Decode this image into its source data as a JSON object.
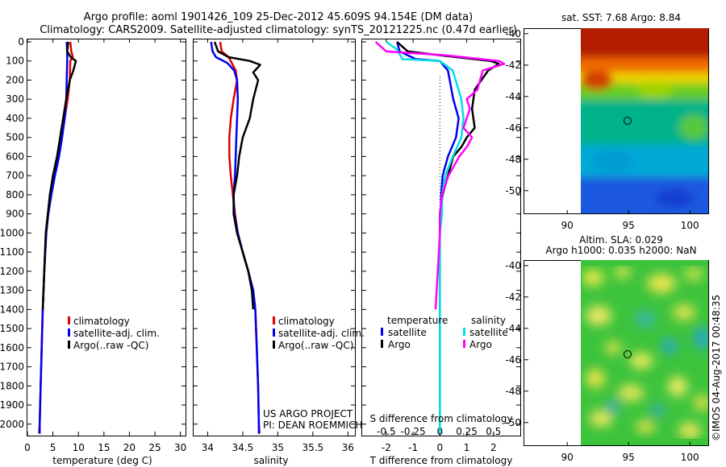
{
  "header": {
    "title_line1": "Argo profile: aoml 1901426_109 25-Dec-2012 45.609S 94.154E (DM data)",
    "title_line2": "Climatology: CARS2009. Satellite-adjusted climatology: synTS_20121225.nc (0.47d earlier)"
  },
  "colors": {
    "climatology": "#e00000",
    "satellite_clim": "#0000ee",
    "argo": "#000000",
    "temperature_satellite": "#0000ee",
    "salinity_satellite": "#00e0e0",
    "salinity_argo": "#ff00ff"
  },
  "credit": {
    "line1": "US ARGO PROJECT",
    "line2": "PI: DEAN ROEMMICH"
  },
  "timestamp": "©IMOS 04-Aug-2017 00:48:35",
  "chart_data": [
    {
      "id": "temperature",
      "type": "line",
      "xlabel": "temperature (deg C)",
      "xlim": [
        0,
        31
      ],
      "xticks": [
        0,
        5,
        10,
        15,
        20,
        25,
        30
      ],
      "ylim": [
        0,
        2060
      ],
      "yticks": [
        0,
        100,
        200,
        300,
        400,
        500,
        600,
        700,
        800,
        900,
        1000,
        1100,
        1200,
        1300,
        1400,
        1500,
        1600,
        1700,
        1800,
        1900,
        2000
      ],
      "legend": [
        "climatology",
        "satellite-adj. clim.",
        "Argo(..raw -QC)"
      ],
      "series": [
        {
          "name": "climatology",
          "color_key": "climatology",
          "points": [
            [
              8.4,
              0
            ],
            [
              8.6,
              50
            ],
            [
              8.9,
              80
            ],
            [
              8.4,
              100
            ],
            [
              8.3,
              200
            ],
            [
              7.9,
              300
            ],
            [
              7.3,
              400
            ],
            [
              6.6,
              500
            ],
            [
              5.9,
              600
            ],
            [
              5.1,
              700
            ],
            [
              4.5,
              800
            ],
            [
              4.0,
              900
            ],
            [
              3.6,
              1000
            ],
            [
              3.3,
              1200
            ],
            [
              3.0,
              1400
            ],
            [
              2.8,
              1600
            ],
            [
              2.6,
              1800
            ],
            [
              2.4,
              2000
            ],
            [
              2.3,
              2050
            ]
          ]
        },
        {
          "name": "satellite-adj. clim.",
          "color_key": "satellite_clim",
          "points": [
            [
              7.7,
              0
            ],
            [
              7.8,
              50
            ],
            [
              7.8,
              100
            ],
            [
              7.7,
              200
            ],
            [
              7.6,
              300
            ],
            [
              7.3,
              400
            ],
            [
              6.8,
              500
            ],
            [
              6.2,
              600
            ],
            [
              5.4,
              700
            ],
            [
              4.7,
              800
            ],
            [
              4.1,
              900
            ],
            [
              3.7,
              1000
            ],
            [
              3.3,
              1200
            ],
            [
              3.0,
              1400
            ],
            [
              2.8,
              1600
            ],
            [
              2.6,
              1800
            ],
            [
              2.4,
              2000
            ],
            [
              2.4,
              2050
            ]
          ]
        },
        {
          "name": "Argo(..raw -QC)",
          "color_key": "argo",
          "points": [
            [
              8.0,
              0
            ],
            [
              7.8,
              50
            ],
            [
              8.5,
              80
            ],
            [
              9.5,
              100
            ],
            [
              9.0,
              150
            ],
            [
              8.3,
              200
            ],
            [
              7.6,
              300
            ],
            [
              7.0,
              400
            ],
            [
              6.4,
              500
            ],
            [
              5.8,
              600
            ],
            [
              5.0,
              700
            ],
            [
              4.4,
              800
            ],
            [
              4.0,
              900
            ],
            [
              3.6,
              1000
            ],
            [
              3.3,
              1200
            ],
            [
              3.0,
              1400
            ]
          ]
        }
      ]
    },
    {
      "id": "salinity",
      "type": "line",
      "xlabel": "salinity",
      "xlim": [
        33.8,
        36.1
      ],
      "xticks": [
        34,
        34.5,
        35,
        35.5,
        36
      ],
      "ylim": [
        0,
        2060
      ],
      "legend": [
        "climatology",
        "satellite-adj. clim.",
        "Argo(..raw -QC)"
      ],
      "series": [
        {
          "name": "climatology",
          "color_key": "climatology",
          "points": [
            [
              34.18,
              0
            ],
            [
              34.2,
              50
            ],
            [
              34.3,
              80
            ],
            [
              34.4,
              150
            ],
            [
              34.42,
              200
            ],
            [
              34.37,
              300
            ],
            [
              34.33,
              400
            ],
            [
              34.31,
              500
            ],
            [
              34.31,
              600
            ],
            [
              34.33,
              700
            ],
            [
              34.36,
              800
            ],
            [
              34.39,
              900
            ],
            [
              34.43,
              1000
            ],
            [
              34.5,
              1100
            ],
            [
              34.58,
              1200
            ],
            [
              34.65,
              1300
            ],
            [
              34.68,
              1400
            ],
            [
              34.7,
              1600
            ],
            [
              34.72,
              1800
            ],
            [
              34.73,
              2000
            ],
            [
              34.74,
              2050
            ]
          ]
        },
        {
          "name": "satellite-adj. clim.",
          "color_key": "satellite_clim",
          "points": [
            [
              34.05,
              0
            ],
            [
              34.07,
              50
            ],
            [
              34.12,
              80
            ],
            [
              34.28,
              110
            ],
            [
              34.38,
              150
            ],
            [
              34.42,
              200
            ],
            [
              34.43,
              300
            ],
            [
              34.42,
              400
            ],
            [
              34.41,
              500
            ],
            [
              34.4,
              600
            ],
            [
              34.39,
              700
            ],
            [
              34.37,
              800
            ],
            [
              34.38,
              900
            ],
            [
              34.43,
              1000
            ],
            [
              34.5,
              1100
            ],
            [
              34.58,
              1200
            ],
            [
              34.65,
              1300
            ],
            [
              34.68,
              1400
            ],
            [
              34.7,
              1600
            ],
            [
              34.72,
              1800
            ],
            [
              34.73,
              2000
            ],
            [
              34.73,
              2050
            ]
          ]
        },
        {
          "name": "Argo(..raw -QC)",
          "color_key": "argo",
          "points": [
            [
              34.1,
              0
            ],
            [
              34.15,
              50
            ],
            [
              34.3,
              80
            ],
            [
              34.6,
              100
            ],
            [
              34.75,
              120
            ],
            [
              34.65,
              160
            ],
            [
              34.72,
              200
            ],
            [
              34.65,
              300
            ],
            [
              34.6,
              400
            ],
            [
              34.5,
              500
            ],
            [
              34.45,
              600
            ],
            [
              34.42,
              700
            ],
            [
              34.37,
              800
            ],
            [
              34.37,
              900
            ],
            [
              34.42,
              1000
            ],
            [
              34.5,
              1100
            ],
            [
              34.58,
              1200
            ],
            [
              34.63,
              1300
            ],
            [
              34.65,
              1400
            ]
          ]
        }
      ]
    },
    {
      "id": "difference",
      "type": "line",
      "xlabel": "T difference from climatology",
      "top_label": "S difference from climatology",
      "xlim": [
        -2.9,
        3.0
      ],
      "xticks": [
        -2,
        -1,
        0,
        1,
        2
      ],
      "xtick_labels": [
        "-2",
        "-1",
        "0",
        "1",
        "2"
      ],
      "top_ticks": [
        -0.5,
        -0.25,
        0,
        0.25,
        0.5
      ],
      "top_tick_labels": [
        "-0.5",
        "-0.25",
        "0",
        "0.25",
        "0.5"
      ],
      "ylim": [
        0,
        2060
      ],
      "legend_headers": [
        "temperature",
        "salinity"
      ],
      "legend": [
        "satellite",
        "Argo",
        "satellite",
        "Argo"
      ],
      "series": [
        {
          "name": "temperature satellite",
          "color_key": "temperature_satellite",
          "points": [
            [
              -1.6,
              0
            ],
            [
              -1.5,
              50
            ],
            [
              -0.9,
              90
            ],
            [
              0,
              100
            ],
            [
              0.3,
              150
            ],
            [
              0.5,
              300
            ],
            [
              0.7,
              400
            ],
            [
              0.6,
              500
            ],
            [
              0.3,
              600
            ],
            [
              0.1,
              700
            ],
            [
              0.05,
              800
            ],
            [
              0,
              1000
            ],
            [
              0,
              1200
            ],
            [
              0,
              1400
            ],
            [
              0,
              1600
            ],
            [
              0,
              1800
            ],
            [
              0,
              2000
            ],
            [
              0,
              2050
            ]
          ]
        },
        {
          "name": "temperature Argo",
          "color_key": "argo",
          "points": [
            [
              -1.6,
              0
            ],
            [
              -1.2,
              50
            ],
            [
              0,
              70
            ],
            [
              1.9,
              100
            ],
            [
              2.2,
              115
            ],
            [
              1.8,
              150
            ],
            [
              1.3,
              250
            ],
            [
              1.2,
              350
            ],
            [
              1.3,
              450
            ],
            [
              1.0,
              500
            ],
            [
              0.8,
              550
            ],
            [
              0.5,
              600
            ],
            [
              0.3,
              700
            ],
            [
              0.1,
              800
            ],
            [
              0,
              900
            ],
            [
              0,
              1000
            ]
          ]
        },
        {
          "name": "salinity satellite",
          "color_key": "salinity_satellite",
          "points": [
            [
              -0.5,
              0
            ],
            [
              -0.4,
              40
            ],
            [
              -0.35,
              90
            ],
            [
              0,
              100
            ],
            [
              0.12,
              150
            ],
            [
              0.2,
              300
            ],
            [
              0.22,
              400
            ],
            [
              0.2,
              500
            ],
            [
              0.12,
              600
            ],
            [
              0.05,
              700
            ],
            [
              0.02,
              800
            ],
            [
              0.02,
              900
            ],
            [
              0,
              1000
            ],
            [
              0,
              1200
            ],
            [
              0,
              1400
            ],
            [
              0,
              1600
            ],
            [
              0,
              1800
            ],
            [
              0,
              2000
            ],
            [
              0,
              2050
            ]
          ]
        },
        {
          "name": "salinity Argo",
          "color_key": "salinity_argo",
          "points": [
            [
              -0.6,
              0
            ],
            [
              -0.5,
              50
            ],
            [
              0.05,
              70
            ],
            [
              0.55,
              100
            ],
            [
              0.6,
              115
            ],
            [
              0.4,
              150
            ],
            [
              0.35,
              250
            ],
            [
              0.25,
              300
            ],
            [
              0.28,
              350
            ],
            [
              0.22,
              450
            ],
            [
              0.3,
              500
            ],
            [
              0.25,
              550
            ],
            [
              0.18,
              600
            ],
            [
              0.08,
              700
            ],
            [
              0.02,
              800
            ],
            [
              0,
              900
            ],
            [
              0,
              1000
            ],
            [
              -0.02,
              1200
            ],
            [
              -0.04,
              1400
            ]
          ]
        }
      ]
    },
    {
      "id": "sst-map",
      "type": "heatmap",
      "title": "sat. SST: 7.68 Argo: 8.84",
      "xlim": [
        86.5,
        101.5
      ],
      "ylim": [
        -51.5,
        -39.7
      ],
      "xticks": [
        90,
        95,
        100
      ],
      "yticks": [
        -40,
        -42,
        -44,
        -46,
        -48,
        -50
      ],
      "marker": {
        "lon": 94.15,
        "lat": -45.6
      }
    },
    {
      "id": "sla-map",
      "type": "heatmap",
      "title_line1": "Altim. SLA: 0.029",
      "title_line2": "Argo h1000: 0.035 h2000: NaN",
      "xlim": [
        86.5,
        101.5
      ],
      "ylim": [
        -51.5,
        -39.7
      ],
      "xticks": [
        90,
        95,
        100
      ],
      "yticks": [
        -40,
        -42,
        -44,
        -46,
        -48,
        -50
      ],
      "marker": {
        "lon": 94.15,
        "lat": -45.6
      }
    }
  ]
}
